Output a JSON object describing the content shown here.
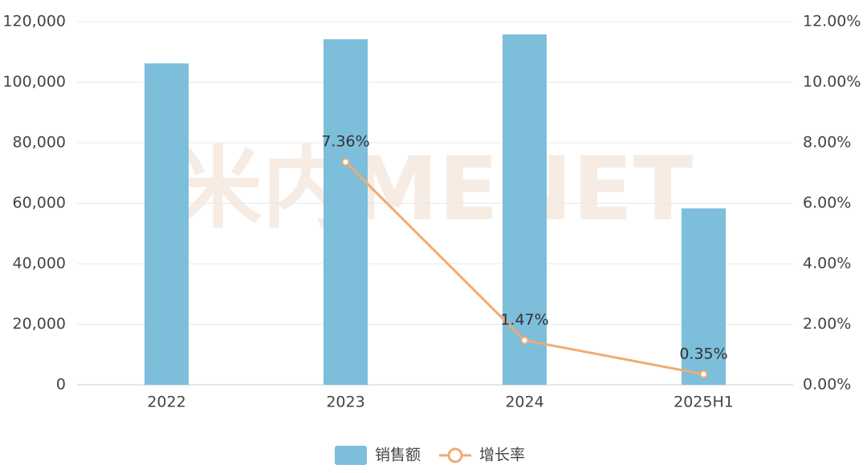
{
  "chart_data": {
    "type": "bar-line",
    "watermark": "米内MENET",
    "categories": [
      "2022",
      "2023",
      "2024",
      "2025H1"
    ],
    "series": [
      {
        "name": "销售额",
        "type": "bar",
        "color": "#7dbedb",
        "values": [
          106200,
          114200,
          115800,
          58300
        ]
      },
      {
        "name": "增长率",
        "type": "line",
        "axis": "y2",
        "color": "#efac72",
        "values": [
          null,
          7.36,
          1.47,
          0.35
        ],
        "value_labels": [
          null,
          "7.36%",
          "1.47%",
          "0.35%"
        ]
      }
    ],
    "ylim": [
      0,
      120000
    ],
    "yticks": [
      0,
      {
        "value": 20000,
        "label": "20,000"
      },
      {
        "value": 40000,
        "label": "40,000"
      },
      {
        "value": 60000,
        "label": "60,000"
      },
      {
        "value": 80000,
        "label": "80,000"
      },
      {
        "value": 100000,
        "label": "100,000"
      },
      {
        "value": 120000,
        "label": "120,000"
      }
    ],
    "y2lim": [
      0,
      12
    ],
    "y2ticks": [
      {
        "value": 0,
        "label": "0.00%"
      },
      {
        "value": 2,
        "label": "2.00%"
      },
      {
        "value": 4,
        "label": "4.00%"
      },
      {
        "value": 6,
        "label": "6.00%"
      },
      {
        "value": 8,
        "label": "8.00%"
      },
      {
        "value": 10,
        "label": "10.00%"
      },
      {
        "value": 12,
        "label": "12.00%"
      }
    ],
    "grid": true,
    "legend": "bottom"
  }
}
